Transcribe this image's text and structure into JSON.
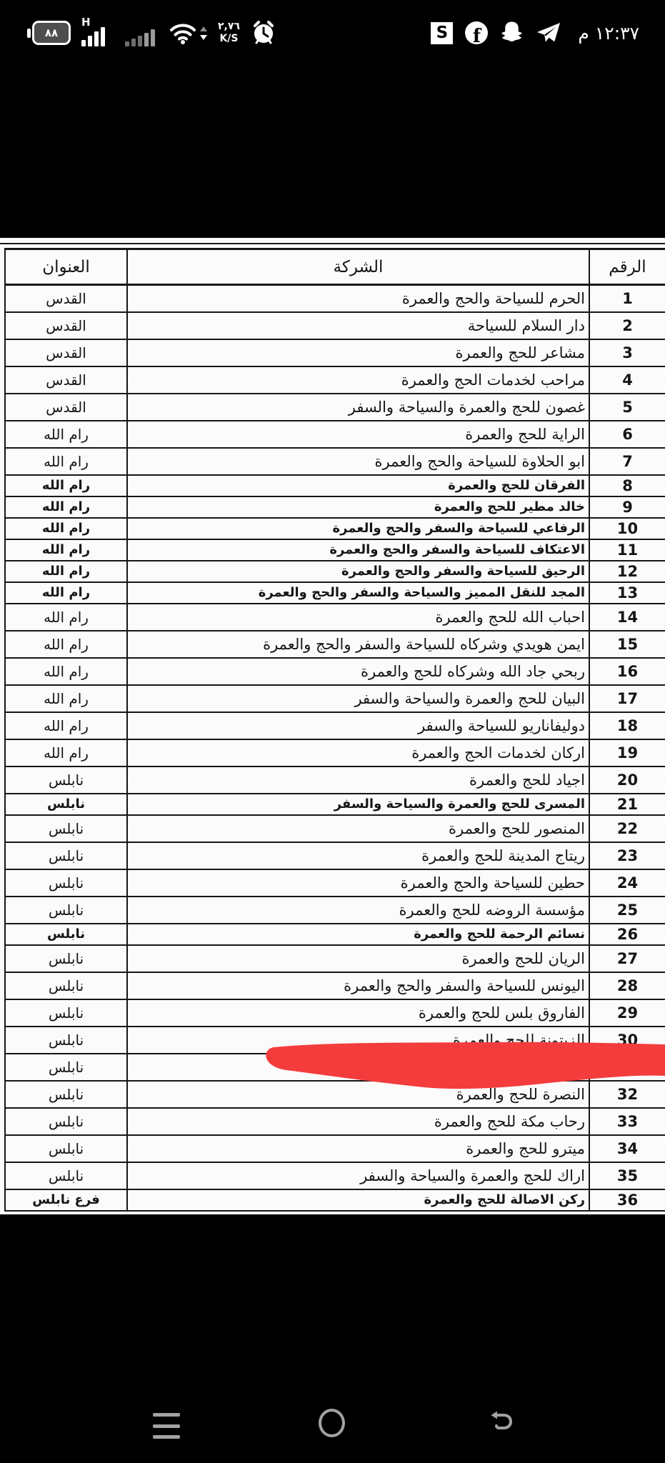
{
  "status_bar": {
    "battery_percent": "٨٨",
    "network_type": "H",
    "speed_value": "٢,٧٦",
    "speed_unit": "K/S",
    "s_badge_letter": "S",
    "facebook_letter": "f",
    "time": "١٢:٣٧ م"
  },
  "colors": {
    "marker_red": "#f43c3c",
    "nav_gray": "#a2a2a2",
    "sheet_white": "#fbfbfb"
  },
  "table": {
    "headers": {
      "number": "الرقم",
      "company": "الشركة",
      "address": "العنوان"
    },
    "rows": [
      {
        "num": "1",
        "company": "الحرم للسياحة والحج والعمرة",
        "address": "القدس",
        "bold": false
      },
      {
        "num": "2",
        "company": "دار السلام للسياحة",
        "address": "القدس",
        "bold": false
      },
      {
        "num": "3",
        "company": "مشاعر للحج والعمرة",
        "address": "القدس",
        "bold": false
      },
      {
        "num": "4",
        "company": "مراحب لخدمات الحج والعمرة",
        "address": "القدس",
        "bold": false
      },
      {
        "num": "5",
        "company": "غصون للحج والعمرة والسياحة والسفر",
        "address": "القدس",
        "bold": false
      },
      {
        "num": "6",
        "company": "الراية للحج والعمرة",
        "address": "رام الله",
        "bold": false
      },
      {
        "num": "7",
        "company": "ابو الحلاوة للسياحة والحج والعمرة",
        "address": "رام الله",
        "bold": false
      },
      {
        "num": "8",
        "company": "الفرقان للحج والعمرة",
        "address": "رام الله",
        "bold": true
      },
      {
        "num": "9",
        "company": "خالد مطير للحج والعمرة",
        "address": "رام الله",
        "bold": true
      },
      {
        "num": "10",
        "company": "الرفاعي للسياحة والسفر والحج والعمرة",
        "address": "رام الله",
        "bold": true
      },
      {
        "num": "11",
        "company": "الاعتكاف للسياحة والسفر والحج والعمرة",
        "address": "رام الله",
        "bold": true
      },
      {
        "num": "12",
        "company": "الرحيق للسياحة والسفر والحج والعمرة",
        "address": "رام الله",
        "bold": true
      },
      {
        "num": "13",
        "company": "المجد للنقل المميز والسياحة والسفر والحج والعمرة",
        "address": "رام الله",
        "bold": true
      },
      {
        "num": "14",
        "company": "احباب الله للحج والعمرة",
        "address": "رام الله",
        "bold": false
      },
      {
        "num": "15",
        "company": "ايمن هويدي وشركاه للسياحة والسفر والحج والعمرة",
        "address": "رام الله",
        "bold": false
      },
      {
        "num": "16",
        "company": "ربحي جاد الله وشركاه للحج والعمرة",
        "address": "رام الله",
        "bold": false
      },
      {
        "num": "17",
        "company": "البيان للحج والعمرة والسياحة والسفر",
        "address": "رام الله",
        "bold": false
      },
      {
        "num": "18",
        "company": "دوليفاناريو للسياحة والسفر",
        "address": "رام الله",
        "bold": false
      },
      {
        "num": "19",
        "company": "اركان لخدمات الحج والعمرة",
        "address": "رام الله",
        "bold": false
      },
      {
        "num": "20",
        "company": "اجياد للحج والعمرة",
        "address": "نابلس",
        "bold": false
      },
      {
        "num": "21",
        "company": "المسرى للحج والعمرة والسياحة والسفر",
        "address": "نابلس",
        "bold": true
      },
      {
        "num": "22",
        "company": "المنصور للحج والعمرة",
        "address": "نابلس",
        "bold": false
      },
      {
        "num": "23",
        "company": "ريتاج المدينة للحج والعمرة",
        "address": "نابلس",
        "bold": false
      },
      {
        "num": "24",
        "company": "حطين للسياحة والحج والعمرة",
        "address": "نابلس",
        "bold": false
      },
      {
        "num": "25",
        "company": "مؤسسة الروضه للحج والعمرة",
        "address": "نابلس",
        "bold": false
      },
      {
        "num": "26",
        "company": "نسائم الرحمة للحج والعمرة",
        "address": "نابلس",
        "bold": true
      },
      {
        "num": "27",
        "company": "الريان للحج والعمرة",
        "address": "نابلس",
        "bold": false
      },
      {
        "num": "28",
        "company": "اليونس للسياحة والسفر والحج والعمرة",
        "address": "نابلس",
        "bold": false
      },
      {
        "num": "29",
        "company": "الفاروق بلس للحج والعمرة",
        "address": "نابلس",
        "bold": false
      },
      {
        "num": "30",
        "company": "الزيتونة للحج والعمرة",
        "address": "نابلس",
        "bold": false
      },
      {
        "num": "31",
        "company": "",
        "address": "نابلس",
        "bold": false
      },
      {
        "num": "32",
        "company": "النصرة للحج والعمرة",
        "address": "نابلس",
        "bold": false
      },
      {
        "num": "33",
        "company": "رحاب مكة للحج والعمرة",
        "address": "نابلس",
        "bold": false
      },
      {
        "num": "34",
        "company": "ميترو للحج والعمرة",
        "address": "نابلس",
        "bold": false
      },
      {
        "num": "35",
        "company": "اراك للحج والعمرة والسياحة والسفر",
        "address": "نابلس",
        "bold": false
      },
      {
        "num": "36",
        "company": "ركن الاصالة للحج والعمرة",
        "address": "فرع نابلس",
        "bold": true
      }
    ]
  }
}
